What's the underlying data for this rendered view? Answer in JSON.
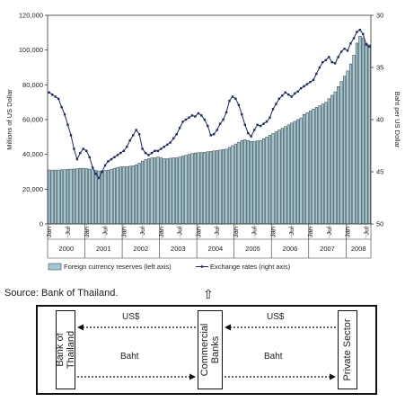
{
  "chart_data": {
    "type": "bar+line",
    "left_axis": {
      "label": "Millions of US Dollar",
      "range": [
        0,
        120000
      ],
      "ticks": [
        "0",
        "20,000",
        "40,000",
        "60,000",
        "80,000",
        "100,000",
        "120,000"
      ]
    },
    "right_axis": {
      "label": "Baht per US Dollar",
      "range": [
        30,
        50
      ],
      "inverted": true,
      "ticks": [
        "30",
        "35",
        "40",
        "45",
        "50"
      ]
    },
    "years": [
      "2000",
      "2001",
      "2002",
      "2003",
      "2004",
      "2005",
      "2006",
      "2007",
      "2008"
    ],
    "month_labels": [
      "Jan",
      "Jul"
    ],
    "legend": {
      "bars": "Foreign currency reserves (left axis)",
      "line": "Exchange rates (right axis)",
      "placement": "bottom"
    },
    "grid": false,
    "series": [
      {
        "name": "Foreign currency reserves (left axis)",
        "type": "bar",
        "axis": "left",
        "values": [
          31000,
          31000,
          31000,
          31000,
          31200,
          31200,
          31400,
          31500,
          31600,
          31800,
          32000,
          32000,
          31800,
          31500,
          31200,
          30800,
          30500,
          30500,
          30800,
          31000,
          31500,
          32000,
          32500,
          32800,
          33000,
          33000,
          33200,
          33500,
          34000,
          35000,
          36000,
          37000,
          37500,
          38000,
          38000,
          38500,
          38000,
          37500,
          37500,
          37800,
          38000,
          38000,
          38500,
          39000,
          39500,
          40000,
          40500,
          40800,
          41000,
          41000,
          41200,
          41500,
          41700,
          42000,
          42200,
          42500,
          42800,
          43000,
          44000,
          45000,
          46000,
          47000,
          48000,
          48500,
          48000,
          47500,
          47500,
          47800,
          48000,
          49000,
          50000,
          51000,
          52000,
          53000,
          54000,
          55000,
          56000,
          57000,
          58000,
          59000,
          60000,
          61000,
          63000,
          64000,
          65000,
          66000,
          67000,
          68000,
          69000,
          70000,
          72000,
          74000,
          76000,
          79000,
          82000,
          85000,
          88000,
          92000,
          97000,
          104000,
          108000,
          107000,
          104000,
          103000
        ]
      },
      {
        "name": "Exchange rates (right axis)",
        "type": "line",
        "axis": "right",
        "values": [
          37.4,
          37.6,
          37.8,
          38.0,
          38.8,
          39.5,
          40.5,
          41.5,
          42.8,
          43.8,
          43.2,
          42.8,
          43.0,
          43.6,
          44.6,
          45.2,
          45.6,
          45.0,
          44.4,
          44.0,
          43.8,
          43.6,
          43.4,
          43.2,
          43.0,
          42.6,
          42.0,
          41.5,
          41.0,
          41.4,
          42.8,
          43.2,
          43.4,
          43.2,
          43.0,
          43.0,
          42.8,
          42.6,
          42.4,
          42.2,
          41.8,
          41.4,
          40.8,
          40.2,
          40.0,
          39.8,
          39.6,
          39.7,
          39.4,
          39.6,
          40.0,
          40.6,
          41.5,
          41.4,
          41.0,
          40.4,
          40.0,
          39.3,
          38.2,
          37.8,
          38.0,
          38.6,
          39.5,
          40.5,
          41.3,
          41.6,
          41.0,
          40.5,
          40.6,
          40.4,
          40.2,
          39.8,
          39.0,
          38.5,
          38.0,
          37.7,
          37.4,
          37.6,
          37.8,
          37.5,
          37.3,
          37.0,
          36.8,
          36.6,
          36.4,
          36.2,
          35.6,
          35.0,
          34.5,
          34.3,
          34.0,
          34.5,
          34.6,
          34.0,
          33.5,
          33.2,
          33.4,
          32.7,
          32.2,
          31.6,
          31.4,
          31.8,
          32.8,
          33.0
        ]
      }
    ]
  },
  "source": "Source: Bank of Thailand.",
  "flow": {
    "nodes": {
      "bank": "Bank of\nThailand",
      "commercial": "Commercial\nBanks",
      "private": "Private Sector"
    },
    "labels": {
      "usd_left": "US$",
      "usd_right": "US$",
      "baht_left": "Baht",
      "baht_right": "Baht"
    }
  }
}
